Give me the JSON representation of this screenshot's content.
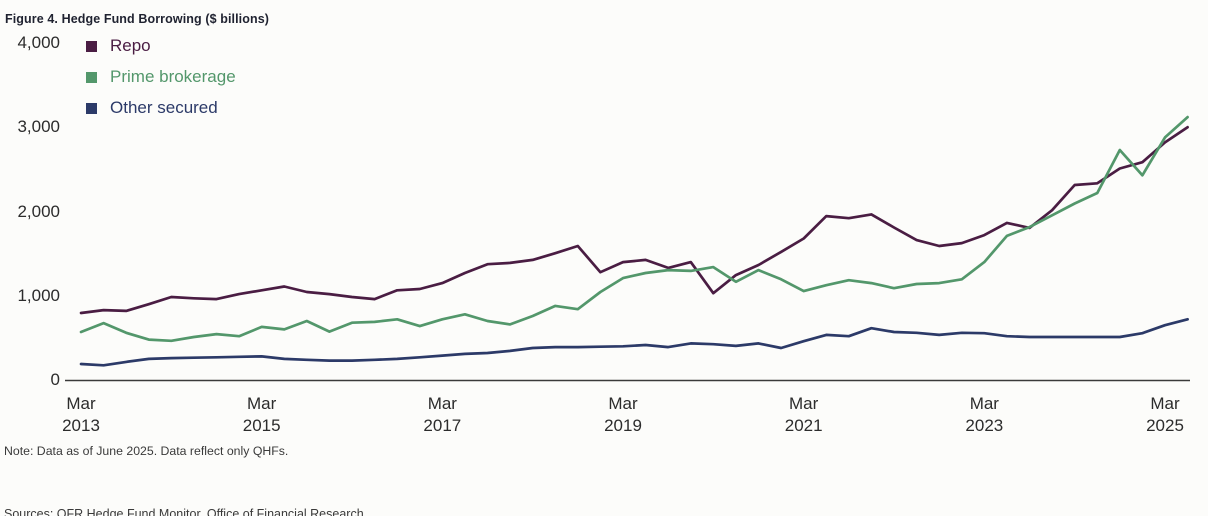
{
  "figure_title": "Figure 4. Hedge Fund Borrowing ($ billions)",
  "note": "Note: Data as of June 2025. Data reflect only QHFs.",
  "source_line": "Sources: OFR Hedge Fund Monitor, Office of Financial Research",
  "colors": {
    "repo": "#4a1d43",
    "prime_brokerage": "#53976b",
    "other_secured": "#2c3a68",
    "axis": "#3a3a3a",
    "background": "#fcfcfa"
  },
  "chart_data": {
    "type": "line",
    "title": "Figure 4. Hedge Fund Borrowing ($ billions)",
    "units": "$ billions",
    "x_start": "Mar 2013",
    "x_end": "Jun 2025",
    "x_interval": "quarterly",
    "x_tick_labels": [
      {
        "month": "Mar",
        "year": "2013"
      },
      {
        "month": "Mar",
        "year": "2015"
      },
      {
        "month": "Mar",
        "year": "2017"
      },
      {
        "month": "Mar",
        "year": "2019"
      },
      {
        "month": "Mar",
        "year": "2021"
      },
      {
        "month": "Mar",
        "year": "2023"
      },
      {
        "month": "Mar",
        "year": "2025"
      }
    ],
    "y_tick_labels": [
      "4,000",
      "3,000",
      "2,000",
      "1,000",
      "0"
    ],
    "ylim": [
      0,
      4000
    ],
    "grid": false,
    "legend_position": "top-left",
    "series": [
      {
        "name": "Repo",
        "color": "#4a1d43",
        "values": [
          795,
          830,
          820,
          900,
          985,
          970,
          960,
          1020,
          1065,
          1110,
          1045,
          1020,
          985,
          960,
          1065,
          1080,
          1150,
          1270,
          1375,
          1390,
          1425,
          1505,
          1590,
          1280,
          1400,
          1425,
          1330,
          1400,
          1030,
          1245,
          1365,
          1520,
          1680,
          1945,
          1920,
          1965,
          1810,
          1660,
          1590,
          1625,
          1720,
          1865,
          1805,
          2015,
          2315,
          2335,
          2510,
          2585,
          2820,
          3000
        ]
      },
      {
        "name": "Prime brokerage",
        "color": "#53976b",
        "values": [
          570,
          675,
          560,
          480,
          465,
          510,
          545,
          520,
          630,
          600,
          700,
          575,
          680,
          690,
          720,
          640,
          720,
          780,
          700,
          660,
          760,
          880,
          840,
          1045,
          1210,
          1270,
          1305,
          1295,
          1340,
          1165,
          1305,
          1195,
          1055,
          1125,
          1185,
          1150,
          1090,
          1140,
          1150,
          1195,
          1400,
          1710,
          1815,
          1955,
          2095,
          2220,
          2730,
          2430,
          2880,
          3120
        ]
      },
      {
        "name": "Other secured",
        "color": "#2c3a68",
        "values": [
          190,
          175,
          215,
          250,
          260,
          265,
          270,
          275,
          280,
          250,
          240,
          230,
          230,
          240,
          250,
          270,
          290,
          310,
          320,
          345,
          380,
          390,
          390,
          395,
          400,
          415,
          390,
          435,
          425,
          405,
          435,
          380,
          460,
          535,
          520,
          615,
          570,
          560,
          535,
          560,
          555,
          520,
          510,
          510,
          510,
          510,
          510,
          555,
          650,
          720
        ]
      }
    ]
  }
}
